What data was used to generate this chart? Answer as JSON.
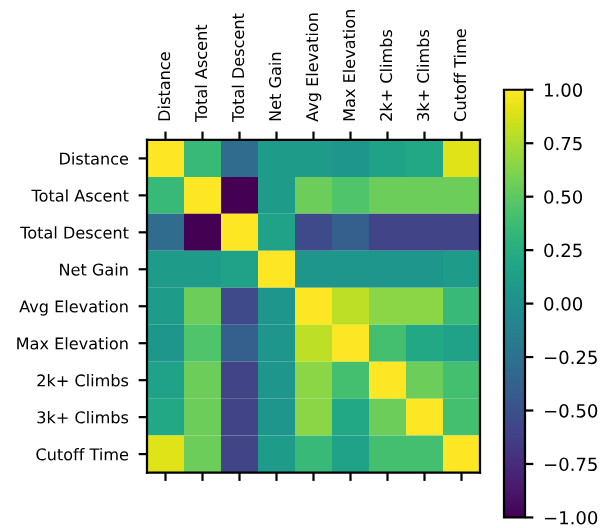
{
  "chart_data": {
    "type": "heatmap",
    "categories": [
      "Distance",
      "Total Ascent",
      "Total Descent",
      "Net Gain",
      "Avg Elevation",
      "Max Elevation",
      "2k+ Climbs",
      "3k+ Climbs",
      "Cutoff Time"
    ],
    "y_categories": [
      "Distance",
      "Total Ascent",
      "Total Descent",
      "Net Gain",
      "Avg Elevation",
      "Max Elevation",
      "2k+ Climbs",
      "3k+ Climbs",
      "Cutoff Time"
    ],
    "cells": [
      [
        1,
        0.35,
        -0.3,
        0.1,
        0.1,
        0.05,
        0.15,
        0.2,
        0.9
      ],
      [
        0.35,
        1,
        -1,
        0.1,
        0.55,
        0.45,
        0.55,
        0.55,
        0.55
      ],
      [
        -0.3,
        -1,
        1,
        0.15,
        -0.55,
        -0.4,
        -0.6,
        -0.6,
        -0.6
      ],
      [
        0.1,
        0.1,
        0.15,
        1,
        0.05,
        0.05,
        0.05,
        0.05,
        0.1
      ],
      [
        0.1,
        0.55,
        -0.55,
        0.05,
        1,
        0.8,
        0.65,
        0.65,
        0.35
      ],
      [
        0.05,
        0.45,
        -0.4,
        0.05,
        0.8,
        1,
        0.4,
        0.2,
        0.15
      ],
      [
        0.15,
        0.55,
        -0.6,
        0.05,
        0.65,
        0.4,
        1,
        0.55,
        0.4
      ],
      [
        0.2,
        0.55,
        -0.6,
        0.05,
        0.65,
        0.2,
        0.55,
        1,
        0.4
      ],
      [
        0.9,
        0.55,
        -0.6,
        0.1,
        0.35,
        0.15,
        0.4,
        0.4,
        1
      ]
    ],
    "clim": [
      -1,
      1
    ],
    "cticks": [
      {
        "value": 1,
        "label": "1.00"
      },
      {
        "value": 0.75,
        "label": "0.75"
      },
      {
        "value": 0.5,
        "label": "0.50"
      },
      {
        "value": 0.25,
        "label": "0.25"
      },
      {
        "value": 0,
        "label": "0.00"
      },
      {
        "value": -0.25,
        "label": "−0.25"
      },
      {
        "value": -0.5,
        "label": "−0.50"
      },
      {
        "value": -0.75,
        "label": "−0.75"
      },
      {
        "value": -1,
        "label": "−1.00"
      }
    ]
  }
}
